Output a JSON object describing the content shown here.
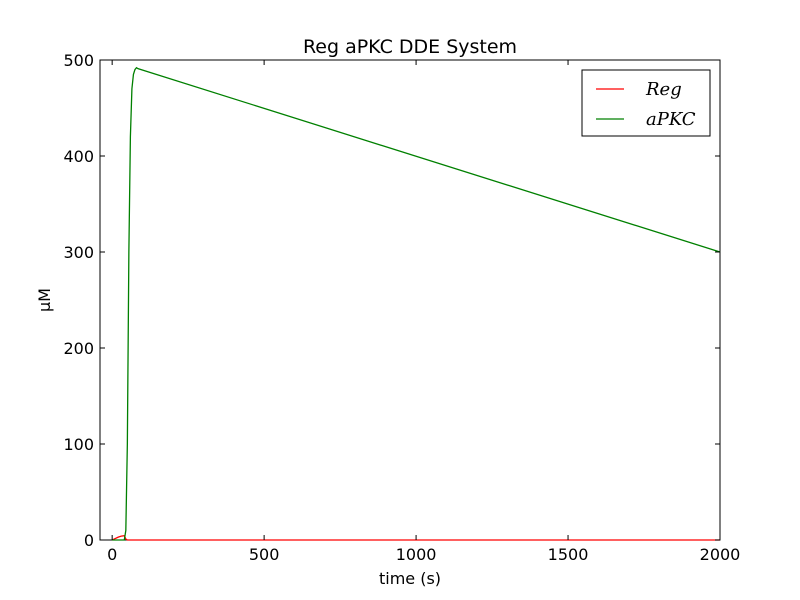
{
  "chart_data": {
    "type": "line",
    "title": "Reg aPKC DDE System",
    "xlabel": "time (s)",
    "ylabel": "μM",
    "xlim": [
      -40,
      2000
    ],
    "ylim": [
      0,
      500
    ],
    "xticks": [
      0,
      500,
      1000,
      1500,
      2000
    ],
    "yticks": [
      0,
      100,
      200,
      300,
      400,
      500
    ],
    "grid": false,
    "legend": "top-right",
    "series": [
      {
        "name": "Reg",
        "color": "#ff0000",
        "x": [
          0,
          10,
          20,
          30,
          40,
          45,
          50,
          2000
        ],
        "y": [
          0,
          1.5,
          3.0,
          4.0,
          4.5,
          1.0,
          0,
          0
        ]
      },
      {
        "name": "aPKC",
        "color": "#008000",
        "x": [
          0,
          40,
          45,
          50,
          55,
          60,
          65,
          70,
          75,
          80,
          85,
          2000
        ],
        "y": [
          0,
          0,
          10,
          100,
          300,
          420,
          470,
          485,
          490,
          492,
          491,
          300
        ]
      }
    ]
  }
}
